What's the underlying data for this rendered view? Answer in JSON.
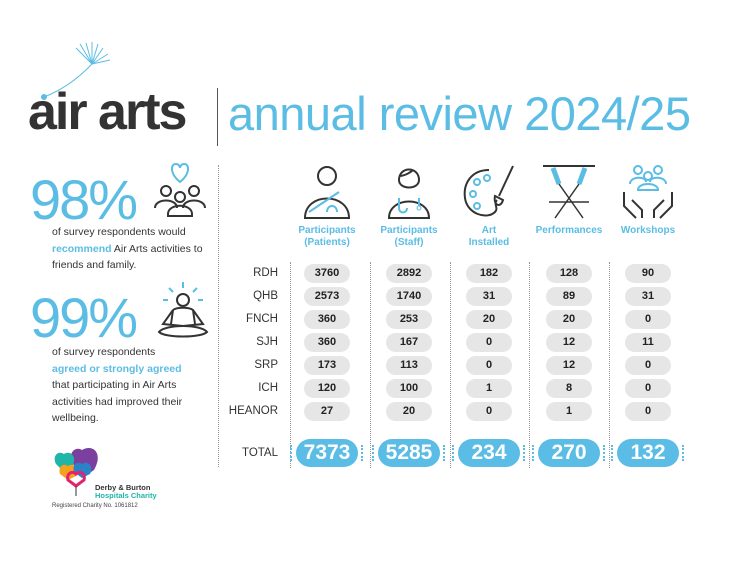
{
  "header": {
    "logo": "air arts",
    "title": "annual review 2024/25"
  },
  "stats": [
    {
      "percent": "98%",
      "text_before": "of survey respondents would",
      "highlight": "recommend",
      "text_after": "Air Arts activities to friends and family.",
      "icon": "heart-people-icon"
    },
    {
      "percent": "99%",
      "text_before": "of survey respondents",
      "highlight": "agreed or strongly agreed",
      "text_after": "that participating in Air Arts activities had improved their wellbeing.",
      "icon": "meditation-icon"
    }
  ],
  "charity": {
    "name_line1": "Derby & Burton",
    "name_line2": "Hospitals Charity",
    "registration": "Registered Charity No. 1061812"
  },
  "table": {
    "columns": [
      {
        "label1": "Participants",
        "label2": "(Patients)",
        "icon": "patient-icon"
      },
      {
        "label1": "Participants",
        "label2": "(Staff)",
        "icon": "staff-icon"
      },
      {
        "label1": "Art",
        "label2": "Installed",
        "icon": "palette-icon"
      },
      {
        "label1": "Performances",
        "label2": "",
        "icon": "spotlights-icon"
      },
      {
        "label1": "Workshops",
        "label2": "",
        "icon": "group-hands-icon"
      }
    ],
    "rows": [
      {
        "label": "RDH",
        "values": [
          "3760",
          "2892",
          "182",
          "128",
          "90"
        ]
      },
      {
        "label": "QHB",
        "values": [
          "2573",
          "1740",
          "31",
          "89",
          "31"
        ]
      },
      {
        "label": "FNCH",
        "values": [
          "360",
          "253",
          "20",
          "20",
          "0"
        ]
      },
      {
        "label": "SJH",
        "values": [
          "360",
          "167",
          "0",
          "12",
          "11"
        ]
      },
      {
        "label": "SRP",
        "values": [
          "173",
          "113",
          "0",
          "12",
          "0"
        ]
      },
      {
        "label": "ICH",
        "values": [
          "120",
          "100",
          "1",
          "8",
          "0"
        ]
      },
      {
        "label": "HEANOR",
        "values": [
          "27",
          "20",
          "0",
          "1",
          "0"
        ]
      }
    ],
    "total": {
      "label": "TOTAL",
      "values": [
        "7373",
        "5285",
        "234",
        "270",
        "132"
      ]
    }
  },
  "colors": {
    "accent": "#5bbde4",
    "text": "#333333",
    "pill": "#e6e6e6"
  }
}
